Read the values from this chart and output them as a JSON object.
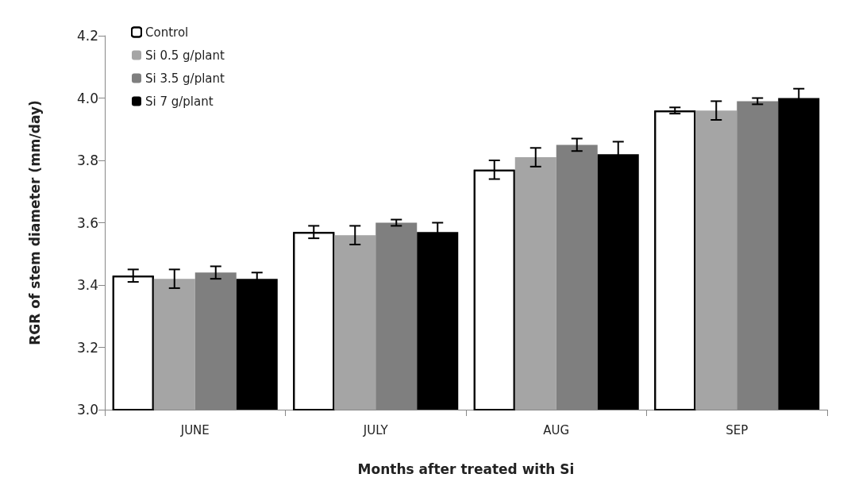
{
  "chart_data": {
    "type": "bar",
    "xlabel": "Months after treated with Si",
    "ylabel": "RGR of stem diameter (mm/day)",
    "categories": [
      "JUNE",
      "JULY",
      "AUG",
      "SEP"
    ],
    "series": [
      {
        "name": "Control",
        "color": "#ffffff",
        "values": [
          3.43,
          3.57,
          3.77,
          3.96
        ],
        "errors": [
          0.02,
          0.02,
          0.03,
          0.01
        ]
      },
      {
        "name": "Si 0.5 g/plant",
        "color": "#a5a5a5",
        "values": [
          3.42,
          3.56,
          3.81,
          3.96
        ],
        "errors": [
          0.03,
          0.03,
          0.03,
          0.03
        ]
      },
      {
        "name": "Si 3.5 g/plant",
        "color": "#7f7f7f",
        "values": [
          3.44,
          3.6,
          3.85,
          3.99
        ],
        "errors": [
          0.02,
          0.01,
          0.02,
          0.01
        ]
      },
      {
        "name": "Si 7 g/plant",
        "color": "#000000",
        "values": [
          3.42,
          3.57,
          3.82,
          4.0
        ],
        "errors": [
          0.02,
          0.03,
          0.04,
          0.03
        ]
      }
    ],
    "ylim": [
      3.0,
      4.2
    ],
    "yticks": [
      {
        "value": 3,
        "label": "3.0"
      },
      3.2,
      3.4,
      3.6,
      3.8,
      {
        "value": 4,
        "label": "4.0"
      },
      4.2
    ],
    "grid": false,
    "legend": "top left"
  }
}
